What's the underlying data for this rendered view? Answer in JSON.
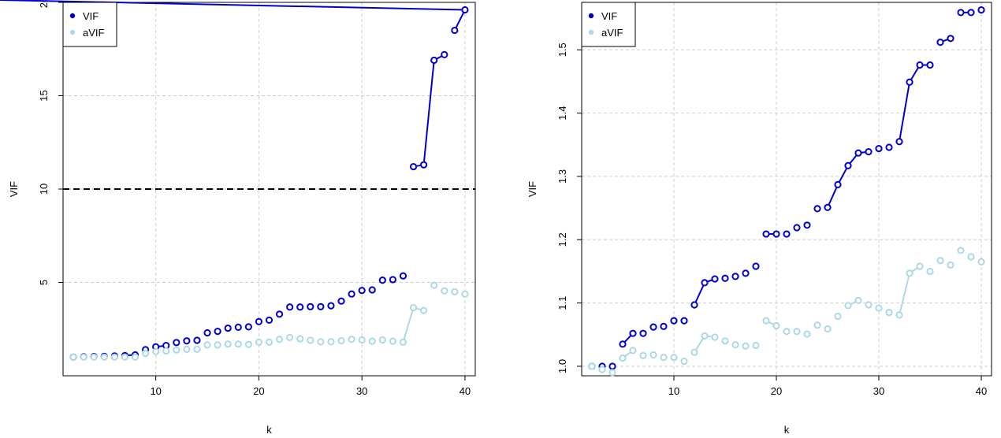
{
  "chart_data": [
    {
      "type": "line",
      "xlabel": "k",
      "ylabel": "VIF",
      "xlim": [
        1,
        41
      ],
      "ylim": [
        0,
        20
      ],
      "xticks": [
        10,
        20,
        30,
        40
      ],
      "yticks": [
        5,
        10,
        15,
        20
      ],
      "x_tick_labels": [
        "10",
        "20",
        "30",
        "40"
      ],
      "y_tick_labels": [
        "5",
        "10",
        "15",
        "20"
      ],
      "grid": true,
      "legend_position": "top-left",
      "reference_line": {
        "y": 10,
        "style": "dashed",
        "color": "#000000"
      },
      "x": [
        2,
        3,
        4,
        5,
        6,
        7,
        8,
        9,
        10,
        11,
        12,
        13,
        14,
        15,
        16,
        17,
        18,
        19,
        20,
        21,
        22,
        23,
        24,
        25,
        26,
        27,
        28,
        29,
        30,
        31,
        32,
        33,
        34,
        35,
        36,
        37,
        38,
        39,
        40
      ],
      "series": [
        {
          "name": "VIF",
          "color": "#0000cd",
          "values": [
            1.0,
            1.02,
            1.03,
            1.04,
            1.06,
            1.08,
            1.12,
            1.4,
            1.55,
            1.62,
            1.78,
            1.87,
            1.9,
            2.3,
            2.38,
            2.55,
            2.6,
            2.62,
            2.9,
            2.98,
            3.3,
            3.68,
            3.68,
            3.7,
            3.7,
            3.75,
            4.0,
            4.38,
            4.57,
            4.6,
            5.12,
            5.15,
            5.35,
            11.2,
            11.3,
            16.9,
            17.2,
            18.5,
            19.6
          ],
          "connected_segments": [
            [
              5,
              6
            ],
            [
              8,
              9
            ],
            [
              33,
              34
            ],
            [
              34,
              35
            ],
            [
              35,
              36
            ],
            [
              37,
              38
            ],
            [
              38,
              39
            ]
          ]
        },
        {
          "name": "aVIF",
          "color": "#add8e6",
          "values": [
            1.0,
            1.0,
            1.0,
            1.0,
            1.0,
            1.0,
            1.0,
            1.2,
            1.3,
            1.33,
            1.38,
            1.42,
            1.42,
            1.65,
            1.65,
            1.7,
            1.7,
            1.68,
            1.8,
            1.8,
            1.95,
            2.05,
            1.98,
            1.9,
            1.82,
            1.82,
            1.88,
            1.95,
            1.92,
            1.85,
            1.92,
            1.85,
            1.8,
            3.65,
            3.5,
            4.85,
            4.55,
            4.5,
            4.38
          ],
          "connected_segments": [
            [
              32,
              33
            ],
            [
              33,
              34
            ]
          ]
        }
      ]
    },
    {
      "type": "line",
      "xlabel": "k",
      "ylabel": "VIF",
      "xlim": [
        1,
        41
      ],
      "ylim": [
        0.985,
        1.575
      ],
      "xticks": [
        10,
        20,
        30,
        40
      ],
      "yticks": [
        1.0,
        1.1,
        1.2,
        1.3,
        1.4,
        1.5
      ],
      "x_tick_labels": [
        "10",
        "20",
        "30",
        "40"
      ],
      "y_tick_labels": [
        "1.0",
        "1.1",
        "1.2",
        "1.3",
        "1.4",
        "1.5"
      ],
      "grid": true,
      "legend_position": "top-left",
      "x": [
        2,
        3,
        4,
        5,
        6,
        7,
        8,
        9,
        10,
        11,
        12,
        13,
        14,
        15,
        16,
        17,
        18,
        19,
        20,
        21,
        22,
        23,
        24,
        25,
        26,
        27,
        28,
        29,
        30,
        31,
        32,
        33,
        34,
        35,
        36,
        37,
        38,
        39,
        40
      ],
      "series": [
        {
          "name": "VIF",
          "color": "#0000cd",
          "values": [
            1.0,
            1.0,
            1.0,
            1.035,
            1.052,
            1.052,
            1.062,
            1.063,
            1.072,
            1.072,
            1.097,
            1.132,
            1.138,
            1.139,
            1.142,
            1.147,
            1.158,
            1.209,
            1.209,
            1.209,
            1.219,
            1.223,
            1.249,
            1.251,
            1.287,
            1.317,
            1.337,
            1.339,
            1.344,
            1.346,
            1.355,
            1.449,
            1.476,
            1.476,
            1.512,
            1.518,
            1.559,
            1.559,
            1.563
          ],
          "connected_segments": [
            [
              3,
              4
            ],
            [
              10,
              11
            ],
            [
              11,
              12
            ],
            [
              17,
              18
            ],
            [
              23,
              24
            ],
            [
              24,
              25
            ],
            [
              25,
              26
            ],
            [
              26,
              27
            ],
            [
              30,
              31
            ],
            [
              31,
              32
            ],
            [
              32,
              33
            ],
            [
              34,
              35
            ],
            [
              36,
              37
            ]
          ]
        },
        {
          "name": "aVIF",
          "color": "#add8e6",
          "values": [
            1.0,
            0.995,
            0.99,
            1.013,
            1.025,
            1.017,
            1.018,
            1.014,
            1.014,
            1.008,
            1.022,
            1.048,
            1.046,
            1.04,
            1.034,
            1.032,
            1.033,
            1.072,
            1.064,
            1.055,
            1.055,
            1.051,
            1.065,
            1.059,
            1.079,
            1.096,
            1.104,
            1.097,
            1.092,
            1.085,
            1.081,
            1.147,
            1.158,
            1.15,
            1.167,
            1.16,
            1.183,
            1.173,
            1.165
          ],
          "connected_segments": [
            [
              3,
              4
            ],
            [
              10,
              11
            ],
            [
              11,
              12
            ],
            [
              17,
              18
            ],
            [
              25,
              26
            ],
            [
              30,
              31
            ],
            [
              31,
              32
            ]
          ]
        }
      ]
    }
  ]
}
